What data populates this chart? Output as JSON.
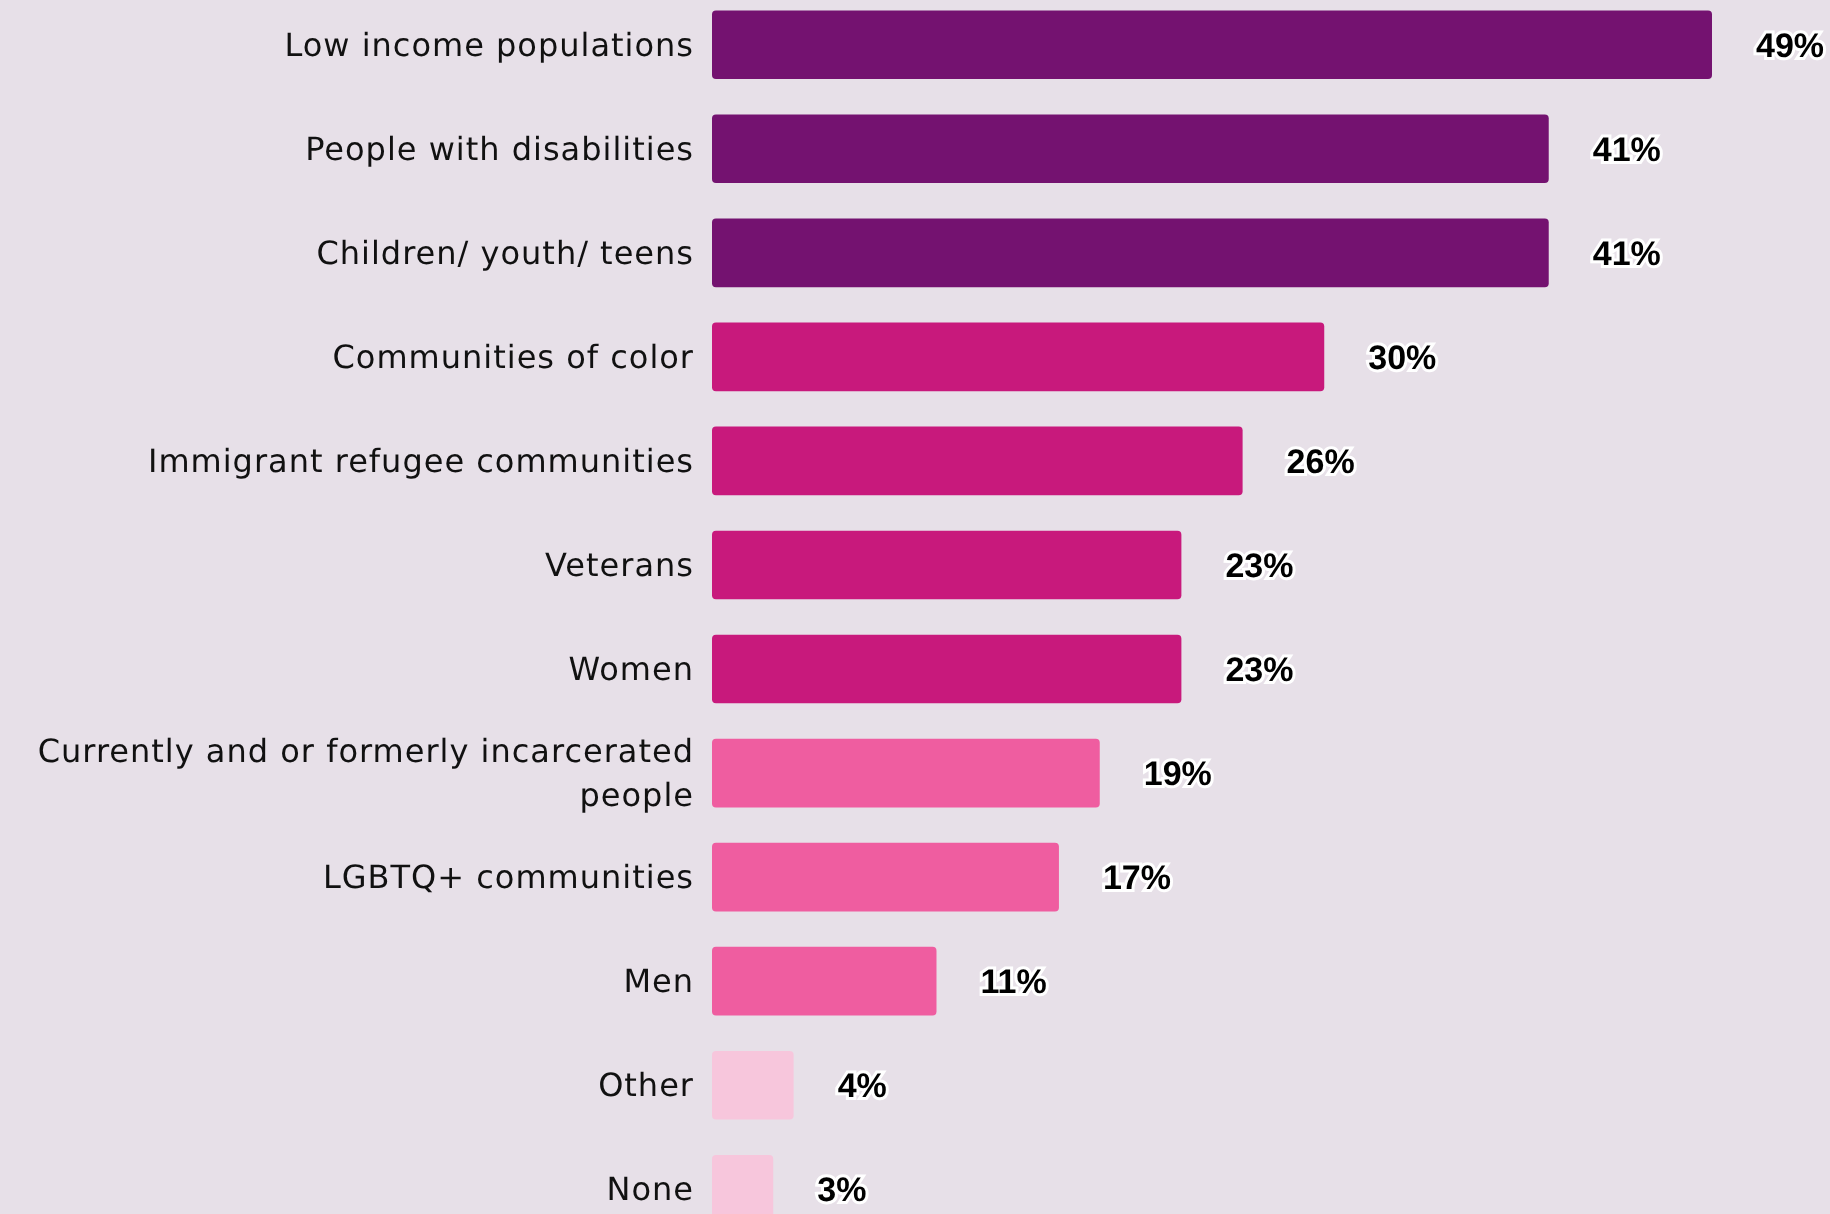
{
  "chart_data": {
    "type": "bar",
    "orientation": "horizontal",
    "value_labels": [
      "49%",
      "41%",
      "41%",
      "30%",
      "26%",
      "23%",
      "23%",
      "19%",
      "17%",
      "11%",
      "4%",
      "3%"
    ],
    "categories": [
      "Low income populations",
      "People with disabilities",
      "Children/ youth/ teens",
      "Communities of color",
      "Immigrant refugee communities",
      "Veterans",
      "Women",
      "Currently and or formerly incarcerated people",
      "LGBTQ+ communities",
      "Men",
      "Other",
      "None"
    ],
    "values": [
      49,
      41,
      41,
      30,
      26,
      23,
      23,
      19,
      17,
      11,
      4,
      3
    ],
    "colors": [
      "#741270",
      "#741270",
      "#741270",
      "#c8197c",
      "#c8197c",
      "#c8197c",
      "#c8197c",
      "#ef5da0",
      "#ef5da0",
      "#ef5da0",
      "#f7c6dc",
      "#f7c6dc"
    ]
  }
}
